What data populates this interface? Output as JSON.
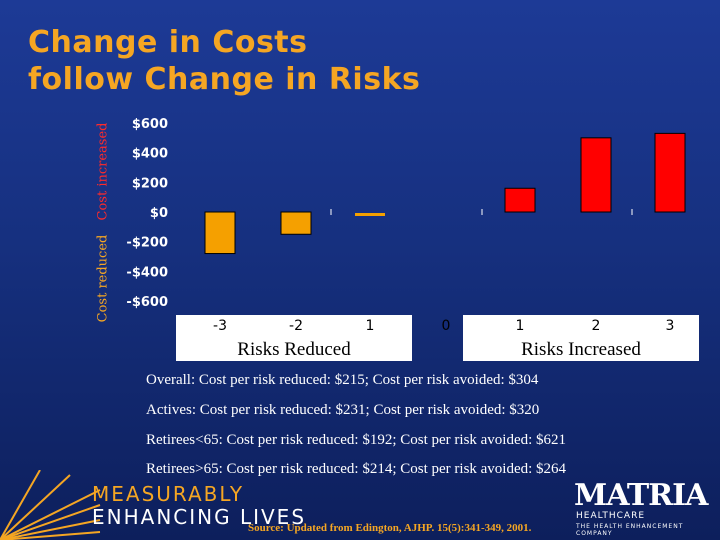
{
  "slide": {
    "title_line1": "Change in Costs",
    "title_line2": "follow Change in Risks"
  },
  "colors": {
    "background": "#1b3690",
    "title": "#f5a623",
    "reduced_bar": "#f5a000",
    "increased_bar": "#ff0000",
    "axis_label_reduced": "#f5a623",
    "axis_label_increased": "#ff2a2a"
  },
  "chart_data": {
    "type": "bar",
    "y_axis_label_lower": "Cost reduced",
    "y_axis_label_upper": "Cost increased",
    "ylim": [
      -600,
      600
    ],
    "y_ticks": [
      600,
      400,
      200,
      0,
      -200,
      -400,
      -600
    ],
    "y_tick_labels": [
      "$600",
      "$400",
      "$200",
      "$0",
      "-$200",
      "-$400",
      "-$600"
    ],
    "categories": [
      "-3",
      "-2",
      "1",
      "0",
      "1",
      "2",
      "3"
    ],
    "values": [
      -280,
      -150,
      0,
      null,
      160,
      500,
      530
    ],
    "bar_colors": [
      "#f5a000",
      "#f5a000",
      "#f5a000",
      null,
      "#ff0000",
      "#ff0000",
      "#ff0000"
    ],
    "group_labels": [
      "Risks Reduced",
      "Risks Increased"
    ]
  },
  "notes": [
    "Overall: Cost per risk reduced: $215; Cost per risk avoided: $304",
    "Actives: Cost per risk reduced: $231; Cost per risk avoided: $320",
    "Retirees<65: Cost per risk reduced: $192; Cost per risk avoided: $621",
    "Retirees>65: Cost per risk reduced: $214; Cost per risk avoided: $264"
  ],
  "branding": {
    "tagline_line1": "MEASURABLY",
    "tagline_line2": "ENHANCING LIVES",
    "logo_name": "MATRIA",
    "logo_sub": "HEALTHCARE",
    "logo_sub2": "THE HEALTH ENHANCEMENT COMPANY"
  },
  "source": "Source: Updated from Edington, AJHP. 15(5):341-349, 2001."
}
